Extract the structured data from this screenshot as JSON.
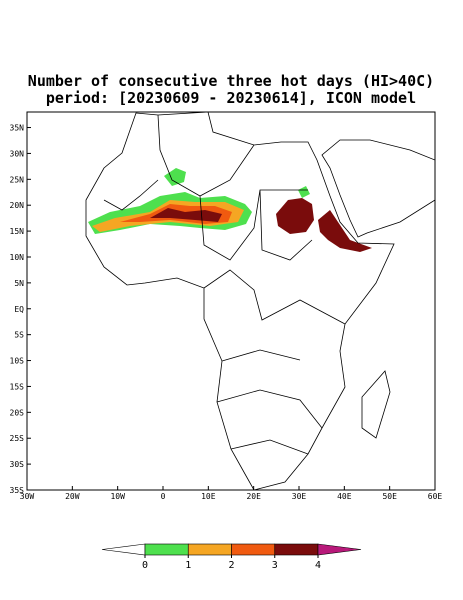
{
  "header": {
    "title": "Number of consecutive three hot days (HI>40C)",
    "subtitle": "period: [20230609 - 20230614], ICON model"
  },
  "map": {
    "xlim": [
      -30,
      60
    ],
    "ylim": [
      -35,
      38
    ],
    "xticks": [
      {
        "value": -30,
        "label": "30W"
      },
      {
        "value": -20,
        "label": "20W"
      },
      {
        "value": -10,
        "label": "10W"
      },
      0,
      {
        "value": 10,
        "label": "10E"
      },
      {
        "value": 20,
        "label": "20E"
      },
      {
        "value": 30,
        "label": "30E"
      },
      {
        "value": 40,
        "label": "40E"
      },
      {
        "value": 50,
        "label": "50E"
      },
      {
        "value": 60,
        "label": "60E"
      }
    ],
    "yticks": [
      {
        "value": 35,
        "label": "35N"
      },
      {
        "value": 30,
        "label": "30N"
      },
      {
        "value": 25,
        "label": "25N"
      },
      {
        "value": 20,
        "label": "20N"
      },
      {
        "value": 15,
        "label": "15N"
      },
      {
        "value": 10,
        "label": "10N"
      },
      {
        "value": 5,
        "label": "5N"
      },
      {
        "value": 0,
        "label": "EQ"
      },
      {
        "value": -5,
        "label": "5S"
      },
      {
        "value": -10,
        "label": "10S"
      },
      {
        "value": -15,
        "label": "15S"
      },
      {
        "value": -20,
        "label": "20S"
      },
      {
        "value": -25,
        "label": "25S"
      },
      {
        "value": -30,
        "label": "30S"
      },
      {
        "value": -35,
        "label": "35S"
      }
    ]
  },
  "colorbar": {
    "ticks": [
      0,
      1,
      2,
      3,
      4
    ],
    "colors": [
      "#ffffff",
      "#4ee04e",
      "#f5a623",
      "#f05a10",
      "#7a0c0c",
      "#b8197a"
    ]
  }
}
